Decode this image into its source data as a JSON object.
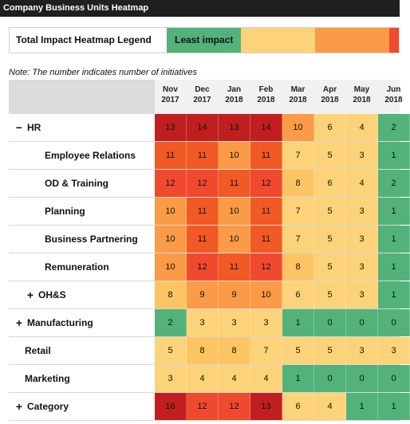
{
  "window": {
    "title": "Company Business Units Heatmap"
  },
  "legend": {
    "title": "Total Impact Heatmap Legend",
    "segments": [
      {
        "label": "Least impact",
        "color": "#52b27a",
        "width": 93
      },
      {
        "label": "",
        "color": "#fdd37a",
        "width": 93
      },
      {
        "label": "",
        "color": "#fb9b47",
        "width": 93
      },
      {
        "label": "",
        "color": "#f04a2e",
        "width": 10
      }
    ]
  },
  "note": "Note: The number indicates number of initiatives",
  "columns": [
    {
      "month": "Nov",
      "year": "2017"
    },
    {
      "month": "Dec",
      "year": "2017"
    },
    {
      "month": "Jan",
      "year": "2018"
    },
    {
      "month": "Feb",
      "year": "2018"
    },
    {
      "month": "Mar",
      "year": "2018"
    },
    {
      "month": "Apr",
      "year": "2018"
    },
    {
      "month": "May",
      "year": "2018"
    },
    {
      "month": "Jun",
      "year": "2018"
    }
  ],
  "colors": {
    "c13": "#c11f1f",
    "c14": "#e8321f",
    "c12": "#f04a2e",
    "c11": "#f15a24",
    "c10": "#fb9b47",
    "c9": "#fb9b47",
    "c8": "#fdc562",
    "c7": "#fdd37a",
    "c6": "#fdd37a",
    "c5": "#fdd37a",
    "c4": "#fdd37a",
    "c3": "#fdd37a",
    "c2": "#52b27a",
    "c1": "#52b27a",
    "c0": "#52b27a"
  },
  "rows": [
    {
      "label": "HR",
      "toggle": "−",
      "indent": 0,
      "values": [
        13,
        14,
        13,
        14,
        10,
        6,
        4,
        2
      ]
    },
    {
      "label": "Employee Relations",
      "toggle": "",
      "indent": 2,
      "values": [
        11,
        11,
        10,
        11,
        7,
        5,
        3,
        1
      ]
    },
    {
      "label": "OD & Training",
      "toggle": "",
      "indent": 2,
      "values": [
        12,
        12,
        11,
        12,
        8,
        6,
        4,
        2
      ]
    },
    {
      "label": "Planning",
      "toggle": "",
      "indent": 2,
      "values": [
        10,
        11,
        10,
        11,
        7,
        5,
        3,
        1
      ]
    },
    {
      "label": "Business Partnering",
      "toggle": "",
      "indent": 2,
      "values": [
        10,
        11,
        10,
        11,
        7,
        5,
        3,
        1
      ]
    },
    {
      "label": "Remuneration",
      "toggle": "",
      "indent": 2,
      "values": [
        10,
        12,
        11,
        12,
        8,
        5,
        3,
        1
      ]
    },
    {
      "label": "OH&S",
      "toggle": "+",
      "indent": 1,
      "values": [
        8,
        9,
        9,
        10,
        6,
        5,
        3,
        1
      ]
    },
    {
      "label": "Manufacturing",
      "toggle": "+",
      "indent": 0,
      "values": [
        2,
        3,
        3,
        3,
        1,
        0,
        0,
        0
      ]
    },
    {
      "label": "Retail",
      "toggle": "",
      "indent": 1,
      "values": [
        5,
        8,
        8,
        7,
        5,
        5,
        3,
        3
      ]
    },
    {
      "label": "Marketing",
      "toggle": "",
      "indent": 1,
      "values": [
        3,
        4,
        4,
        4,
        1,
        0,
        0,
        0
      ]
    },
    {
      "label": "Category",
      "toggle": "+",
      "indent": 0,
      "values": [
        16,
        12,
        12,
        13,
        6,
        4,
        1,
        1
      ]
    }
  ]
}
